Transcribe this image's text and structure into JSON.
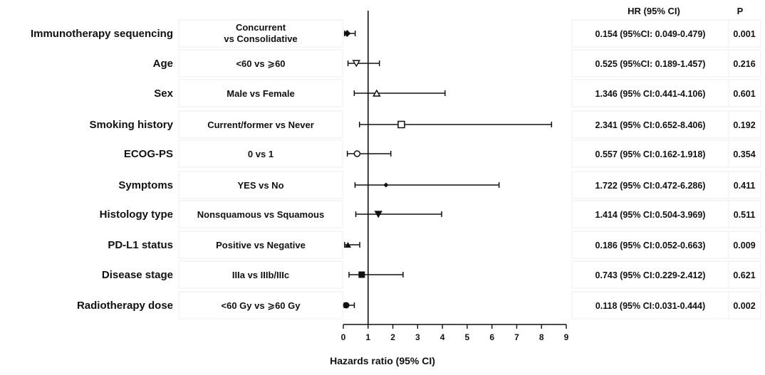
{
  "chart_data": {
    "type": "forest",
    "xlabel": "Hazards ratio (95% CI)",
    "xlim": [
      0,
      9
    ],
    "xticks": [
      0,
      1,
      2,
      3,
      4,
      5,
      6,
      7,
      8,
      9
    ],
    "reference_line": 1,
    "header_hr": "HR (95% CI)",
    "header_p": "P",
    "rows": [
      {
        "variable": "Immunotherapy sequencing",
        "comparison_line1": "Concurrent",
        "comparison_line2": "vs Consolidative",
        "hr": 0.154,
        "lo": 0.049,
        "hi": 0.479,
        "hr_text": "0.154 (95%CI: 0.049-0.479)",
        "p": "0.001",
        "marker": "diamond"
      },
      {
        "variable": "Age",
        "comparison_line1": "<60 vs ⩾60",
        "comparison_line2": "",
        "hr": 0.525,
        "lo": 0.189,
        "hi": 1.457,
        "hr_text": "0.525 (95%CI: 0.189-1.457)",
        "p": "0.216",
        "marker": "triangle-down"
      },
      {
        "variable": "Sex",
        "comparison_line1": "Male vs Female",
        "comparison_line2": "",
        "hr": 1.346,
        "lo": 0.441,
        "hi": 4.106,
        "hr_text": "1.346 (95% CI:0.441-4.106)",
        "p": "0.601",
        "marker": "triangle-up-open"
      },
      {
        "variable": "Smoking history",
        "comparison_line1": "Current/former vs Never",
        "comparison_line2": "",
        "hr": 2.341,
        "lo": 0.652,
        "hi": 8.406,
        "hr_text": "2.341 (95% CI:0.652-8.406)",
        "p": "0.192",
        "marker": "square-open"
      },
      {
        "variable": "ECOG-PS",
        "comparison_line1": "0 vs 1",
        "comparison_line2": "",
        "hr": 0.557,
        "lo": 0.162,
        "hi": 1.918,
        "hr_text": "0.557 (95% CI:0.162-1.918)",
        "p": "0.354",
        "marker": "circle-open"
      },
      {
        "variable": "Symptoms",
        "comparison_line1": "YES vs No",
        "comparison_line2": "",
        "hr": 1.722,
        "lo": 0.472,
        "hi": 6.286,
        "hr_text": "1.722 (95% CI:0.472-6.286)",
        "p": "0.411",
        "marker": "diamond-small"
      },
      {
        "variable": "Histology type",
        "comparison_line1": "Nonsquamous vs Squamous",
        "comparison_line2": "",
        "hr": 1.414,
        "lo": 0.504,
        "hi": 3.969,
        "hr_text": "1.414 (95% CI:0.504-3.969)",
        "p": "0.511",
        "marker": "triangle-down"
      },
      {
        "variable": "PD-L1 status",
        "comparison_line1": "Positive vs Negative",
        "comparison_line2": "",
        "hr": 0.186,
        "lo": 0.052,
        "hi": 0.663,
        "hr_text": "0.186 (95% CI:0.052-0.663)",
        "p": "0.009",
        "marker": "triangle-up"
      },
      {
        "variable": "Disease stage",
        "comparison_line1": "IIIa vs  IIIb/IIIc",
        "comparison_line2": "",
        "hr": 0.743,
        "lo": 0.229,
        "hi": 2.412,
        "hr_text": "0.743 (95% CI:0.229-2.412)",
        "p": "0.621",
        "marker": "square"
      },
      {
        "variable": "Radiotherapy dose",
        "comparison_line1": "<60 Gy vs ⩾60 Gy",
        "comparison_line2": "",
        "hr": 0.118,
        "lo": 0.031,
        "hi": 0.444,
        "hr_text": "0.118 (95% CI:0.031-0.444)",
        "p": "0.002",
        "marker": "circle"
      }
    ]
  }
}
